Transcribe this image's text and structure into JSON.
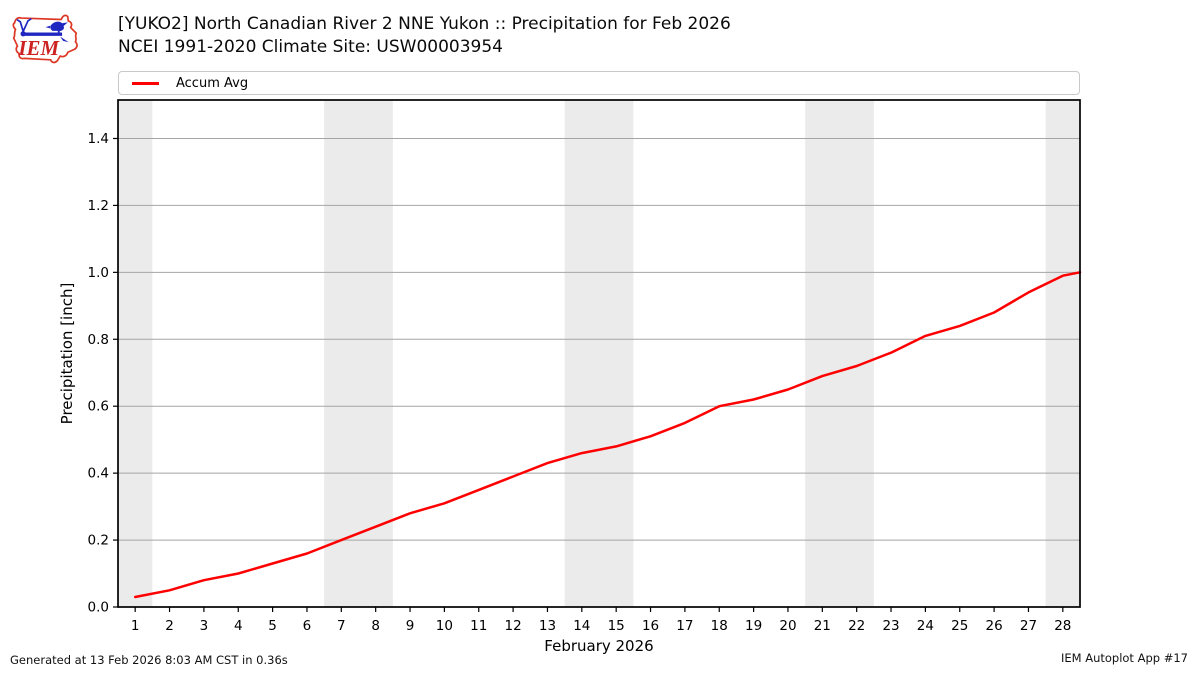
{
  "header": {
    "title_line1": "[YUKO2] North Canadian River 2 NNE Yukon :: Precipitation for Feb 2026",
    "title_line2": "NCEI 1991-2020 Climate Site: USW00003954",
    "logo": {
      "text": "IEM"
    }
  },
  "legend": {
    "items": [
      {
        "label": "Accum Avg",
        "color": "#ff0000"
      }
    ]
  },
  "footer": {
    "left": "Generated at 13 Feb 2026 8:03 AM CST in 0.36s",
    "right": "IEM Autoplot App #17"
  },
  "chart_data": {
    "type": "line",
    "title": "[YUKO2] North Canadian River 2 NNE Yukon :: Precipitation for Feb 2026",
    "subtitle": "NCEI 1991-2020 Climate Site: USW00003954",
    "xlabel": "February 2026",
    "ylabel": "Precipitation [inch]",
    "xlim": [
      0.5,
      28.5
    ],
    "ylim": [
      0,
      1.515
    ],
    "x_ticks": [
      1,
      2,
      3,
      4,
      5,
      6,
      7,
      8,
      9,
      10,
      11,
      12,
      13,
      14,
      15,
      16,
      17,
      18,
      19,
      20,
      21,
      22,
      23,
      24,
      25,
      26,
      27,
      28
    ],
    "y_tick_labels": [
      "0.0",
      "0.2",
      "0.4",
      "0.6",
      "0.8",
      "1.0",
      "1.2",
      "1.4"
    ],
    "grid": "horizontal-only",
    "legend_position": "top",
    "weekend_bands": [
      [
        0.5,
        1.5
      ],
      [
        6.5,
        8.5
      ],
      [
        13.5,
        15.5
      ],
      [
        20.5,
        22.5
      ],
      [
        27.5,
        28.5
      ]
    ],
    "colors": {
      "line": "#ff0000",
      "band": "#ebebeb",
      "grid": "#a5a5a5",
      "frame": "#000000"
    },
    "series": [
      {
        "name": "Accum Avg",
        "color": "#ff0000",
        "x": [
          1,
          2,
          3,
          4,
          5,
          6,
          7,
          8,
          9,
          10,
          11,
          12,
          13,
          14,
          15,
          16,
          17,
          18,
          19,
          20,
          21,
          22,
          23,
          24,
          25,
          26,
          27,
          28,
          28.5
        ],
        "y": [
          0.03,
          0.05,
          0.08,
          0.1,
          0.13,
          0.16,
          0.2,
          0.24,
          0.28,
          0.31,
          0.35,
          0.39,
          0.43,
          0.46,
          0.48,
          0.51,
          0.55,
          0.6,
          0.62,
          0.65,
          0.69,
          0.72,
          0.76,
          0.81,
          0.84,
          0.88,
          0.94,
          0.99,
          1.0
        ]
      }
    ]
  }
}
